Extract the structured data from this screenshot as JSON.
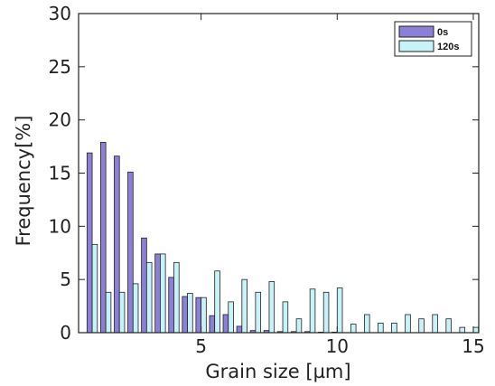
{
  "chart_data": {
    "type": "bar",
    "xlabel": "Grain size [µm]",
    "ylabel": "Frequency[%]",
    "xlim": [
      0.5,
      15.2
    ],
    "ylim": [
      0,
      30
    ],
    "xticks": [
      5,
      10,
      15
    ],
    "yticks": [
      0,
      5,
      10,
      15,
      20,
      25,
      30
    ],
    "grid": false,
    "legend_position": "top-right",
    "bin_centers": [
      1,
      1.5,
      2,
      2.5,
      3,
      3.5,
      4,
      4.5,
      5,
      5.5,
      6,
      6.5,
      7,
      7.5,
      8,
      8.5,
      9,
      9.5,
      10,
      10.5,
      11,
      11.5,
      12,
      12.5,
      13,
      13.5,
      14,
      14.5,
      15
    ],
    "series": [
      {
        "name": "0s",
        "color": "#8B7FD6",
        "values": [
          16.9,
          17.9,
          16.6,
          15.1,
          8.9,
          7.4,
          5.2,
          3.4,
          3.3,
          1.6,
          1.7,
          0.6,
          0.2,
          0.2,
          0.1,
          0.1,
          0.1,
          0.05,
          0.05,
          0,
          0,
          0,
          0,
          0,
          0,
          0,
          0,
          0,
          0
        ]
      },
      {
        "name": "120s",
        "color": "#C6F2F8",
        "values": [
          8.3,
          3.8,
          3.8,
          4.6,
          6.6,
          7.4,
          6.6,
          3.7,
          3.3,
          5.8,
          2.9,
          5.0,
          3.8,
          4.8,
          2.9,
          1.3,
          4.1,
          3.8,
          4.2,
          0.8,
          1.7,
          0.9,
          0.9,
          1.7,
          1.3,
          1.7,
          1.3,
          0.5,
          0.5
        ]
      }
    ]
  }
}
